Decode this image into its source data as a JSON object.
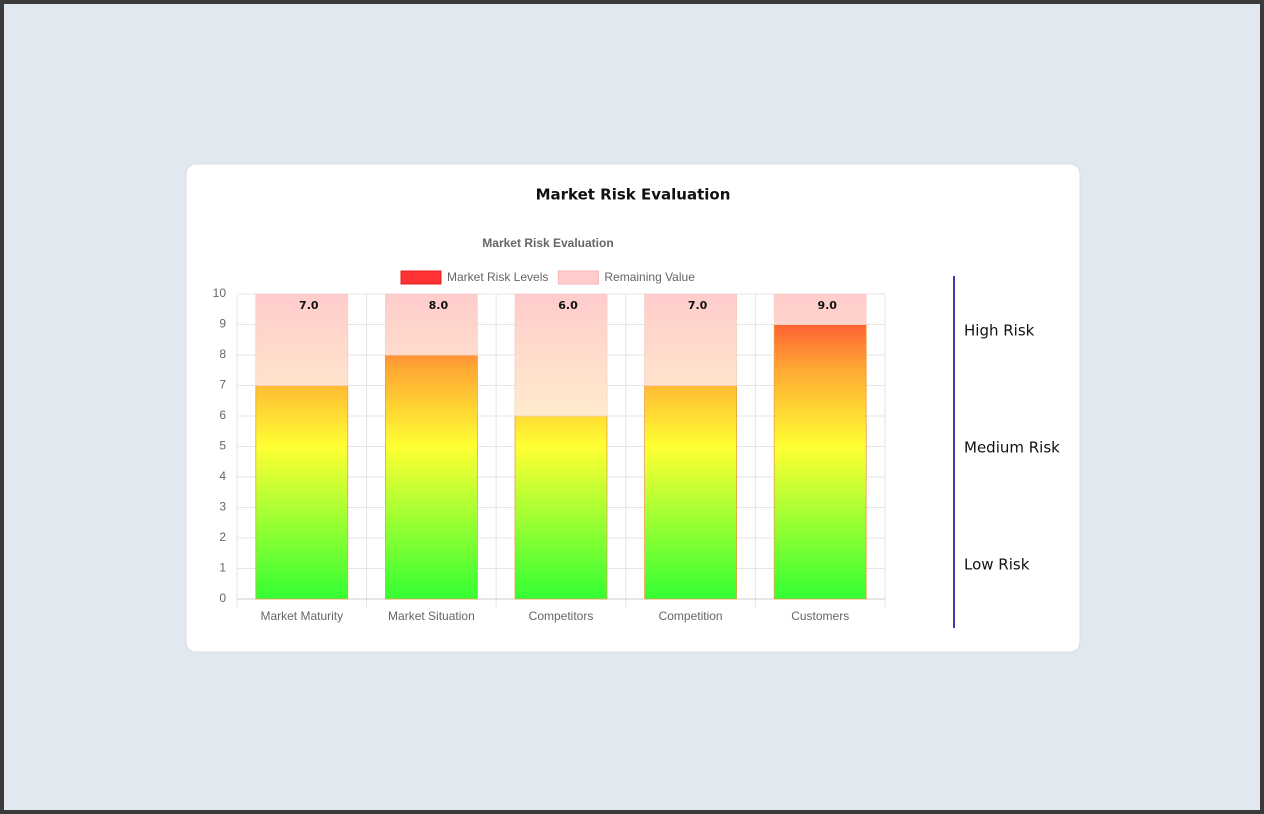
{
  "header": {
    "title": "Market Risk Evaluation"
  },
  "risk_scale": [
    "High Risk",
    "Medium Risk",
    "Low Risk"
  ],
  "chart_data": {
    "type": "bar",
    "stacked": true,
    "title": "Market Risk Evaluation",
    "categories": [
      "Market Maturity",
      "Market Situation",
      "Competitors",
      "Competition",
      "Customers"
    ],
    "series": [
      {
        "name": "Market Risk Levels",
        "color": "#ff3333",
        "values": [
          7,
          8,
          6,
          7,
          9
        ],
        "value_labels": [
          "7.0",
          "8.0",
          "6.0",
          "7.0",
          "9.0"
        ]
      },
      {
        "name": "Remaining Value",
        "color": "#ffcccc",
        "values": [
          3,
          2,
          4,
          3,
          1
        ]
      }
    ],
    "ylim": [
      0,
      10
    ],
    "yticks": [
      0,
      1,
      2,
      3,
      4,
      5,
      6,
      7,
      8,
      9,
      10
    ],
    "grid": true,
    "legend": "top"
  }
}
